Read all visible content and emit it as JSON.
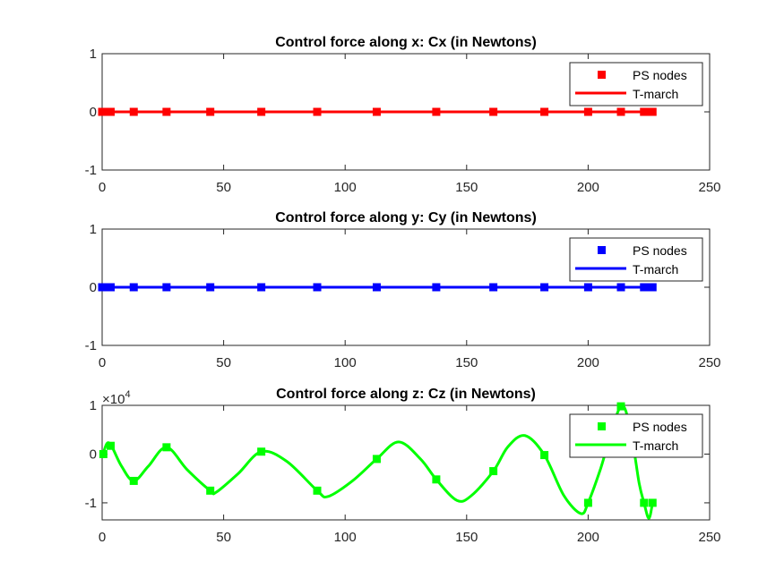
{
  "chart_data": [
    {
      "type": "line",
      "title": "Control force along x: Cx (in Newtons)",
      "xlabel": "",
      "ylabel": "",
      "xlim": [
        0,
        250
      ],
      "ylim": [
        -1,
        1
      ],
      "xticks": [
        0,
        50,
        100,
        150,
        200,
        250
      ],
      "yticks": [
        -1,
        0,
        1
      ],
      "xtick_labels": [
        "0",
        "50",
        "100",
        "150",
        "200",
        "250"
      ],
      "ytick_labels": [
        "-1",
        "0",
        "1"
      ],
      "exponent_label": "",
      "color": "#ff0000",
      "grid": false,
      "legend_position": "top-right",
      "legend": [
        "PS nodes",
        "T-march"
      ],
      "series": [
        {
          "name": "PS nodes",
          "style": "square-markers",
          "x": [
            0,
            1,
            2,
            3.5,
            13,
            26.5,
            44.5,
            65.5,
            88.5,
            113,
            137.5,
            161,
            182,
            200,
            213.5,
            223,
            225,
            226.5
          ],
          "y": [
            0,
            0,
            0,
            0,
            0,
            0,
            0,
            0,
            0,
            0,
            0,
            0,
            0,
            0,
            0,
            0,
            0,
            0
          ]
        },
        {
          "name": "T-march",
          "style": "line",
          "x": [
            0,
            50,
            100,
            150,
            200,
            226.5
          ],
          "y": [
            0,
            0,
            0,
            0,
            0,
            0
          ]
        }
      ]
    },
    {
      "type": "line",
      "title": "Control force along y: Cy (in Newtons)",
      "xlabel": "",
      "ylabel": "",
      "xlim": [
        0,
        250
      ],
      "ylim": [
        -1,
        1
      ],
      "xticks": [
        0,
        50,
        100,
        150,
        200,
        250
      ],
      "yticks": [
        -1,
        0,
        1
      ],
      "xtick_labels": [
        "0",
        "50",
        "100",
        "150",
        "200",
        "250"
      ],
      "ytick_labels": [
        "-1",
        "0",
        "1"
      ],
      "exponent_label": "",
      "color": "#0000ff",
      "grid": false,
      "legend_position": "top-right",
      "legend": [
        "PS nodes",
        "T-march"
      ],
      "series": [
        {
          "name": "PS nodes",
          "style": "square-markers",
          "x": [
            0,
            1,
            2,
            3.5,
            13,
            26.5,
            44.5,
            65.5,
            88.5,
            113,
            137.5,
            161,
            182,
            200,
            213.5,
            223,
            225,
            226.5
          ],
          "y": [
            0,
            0,
            0,
            0,
            0,
            0,
            0,
            0,
            0,
            0,
            0,
            0,
            0,
            0,
            0,
            0,
            0,
            0
          ]
        },
        {
          "name": "T-march",
          "style": "line",
          "x": [
            0,
            50,
            100,
            150,
            200,
            226.5
          ],
          "y": [
            0,
            0,
            0,
            0,
            0,
            0
          ]
        }
      ]
    },
    {
      "type": "line",
      "title": "Control force along z: Cz (in Newtons)",
      "xlabel": "",
      "ylabel": "",
      "xlim": [
        0,
        250
      ],
      "ylim": [
        -13500,
        10000
      ],
      "xticks": [
        0,
        50,
        100,
        150,
        200,
        250
      ],
      "yticks": [
        -10000,
        0,
        10000
      ],
      "xtick_labels": [
        "0",
        "50",
        "100",
        "150",
        "200",
        "250"
      ],
      "ytick_labels": [
        "-1",
        "0",
        "1"
      ],
      "exponent_label": "×10",
      "exponent_power": "4",
      "color": "#00ff00",
      "grid": false,
      "legend_position": "top-right",
      "legend": [
        "PS nodes",
        "T-march"
      ],
      "series": [
        {
          "name": "PS nodes",
          "style": "square-markers",
          "x": [
            0.5,
            3.5,
            13,
            26.5,
            44.5,
            65.5,
            88.5,
            113,
            137.5,
            161,
            182,
            200,
            213.5,
            223,
            226.5
          ],
          "y": [
            0,
            1700,
            -5500,
            1400,
            -7500,
            500,
            -7500,
            -1000,
            -5200,
            -3500,
            -200,
            -10000,
            9800,
            -10000,
            -10000
          ]
        },
        {
          "name": "T-march",
          "style": "line",
          "x": [
            0,
            2,
            4,
            8,
            13,
            19,
            26.5,
            35,
            44.5,
            47,
            56,
            65.5,
            76,
            88.5,
            93,
            103,
            113,
            122,
            131,
            137.5,
            146,
            152,
            161,
            167,
            174,
            182,
            190,
            197,
            200,
            205,
            213.5,
            218,
            221,
            223,
            225,
            226.5
          ],
          "y": [
            -600,
            2200,
            1500,
            -2500,
            -5500,
            -2500,
            1400,
            -3200,
            -7500,
            -7800,
            -4000,
            500,
            -1500,
            -7500,
            -8700,
            -5500,
            -1000,
            2500,
            -1000,
            -5200,
            -9500,
            -8500,
            -3500,
            1500,
            3800,
            -200,
            -8500,
            -12200,
            -10000,
            -3200,
            9800,
            3000,
            -6000,
            -10000,
            -13200,
            -10000
          ]
        }
      ]
    }
  ]
}
